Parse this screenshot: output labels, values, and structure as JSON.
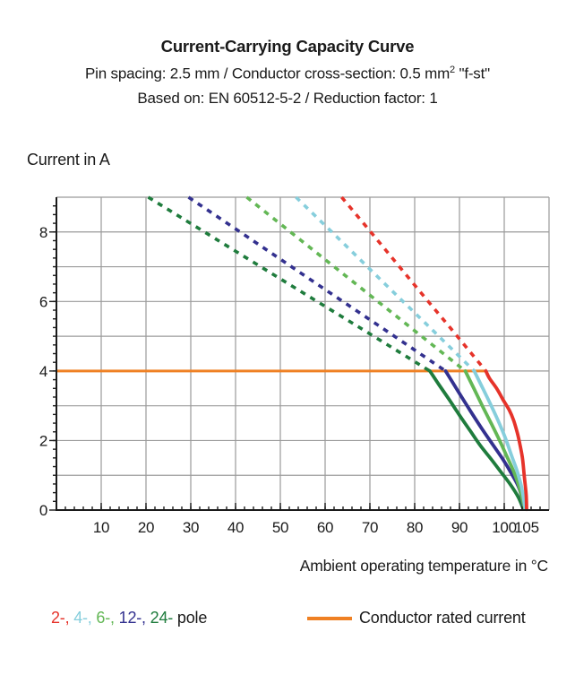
{
  "title": {
    "main": "Current-Carrying Capacity Curve",
    "subtitle_pre": "Pin spacing: 2.5 mm / Conductor cross-section: 0.5 mm",
    "subtitle_sup": "2",
    "subtitle_post": " \"f-st\"",
    "basis": "Based on: EN 60512-5-2 / Reduction factor: 1"
  },
  "axes_titles": {
    "y": "Current in A",
    "x": "Ambient operating temperature in °C"
  },
  "legend": {
    "pole_items": [
      {
        "label": "2-,",
        "color": "#E6332A"
      },
      {
        "label": "4-,",
        "color": "#86CEDC"
      },
      {
        "label": "6-,",
        "color": "#63B755"
      },
      {
        "label": "12-,",
        "color": "#33318F"
      },
      {
        "label": "24-",
        "color": "#1F7C3D"
      }
    ],
    "pole_suffix": " pole",
    "rated_label": "Conductor rated current",
    "rated_color": "#EF8023"
  },
  "chart_data": {
    "type": "line",
    "title": "Current-Carrying Capacity Curve",
    "subtitle": "Pin spacing: 2.5 mm / Conductor cross-section: 0.5 mm2 \"f-st\" / Based on: EN 60512-5-2 / Reduction factor: 1",
    "xlabel": "Ambient operating temperature in °C",
    "ylabel": "Current in A",
    "xlim": [
      0,
      110
    ],
    "ylim": [
      0,
      9
    ],
    "grid_color": "#9A9A9A",
    "axis_color": "#1a1a1a",
    "x_gridlines": [
      10,
      20,
      30,
      40,
      50,
      60,
      70,
      80,
      90,
      100,
      110
    ],
    "y_gridlines": [
      1,
      2,
      3,
      4,
      5,
      6,
      7,
      8,
      9
    ],
    "x_ticks": [
      {
        "from": 2,
        "to": 108,
        "step": 2,
        "len": 4
      },
      {
        "from": 10,
        "to": 100,
        "step": 10,
        "len": 8
      }
    ],
    "y_ticks": [
      {
        "from": 0.25,
        "to": 8.75,
        "step": 0.25,
        "len": 4
      },
      {
        "from": 0,
        "to": 8,
        "step": 2,
        "len": 8
      }
    ],
    "x_tick_labels": [
      {
        "v": 10,
        "label": "10"
      },
      {
        "v": 20,
        "label": "20"
      },
      {
        "v": 30,
        "label": "30"
      },
      {
        "v": 40,
        "label": "40"
      },
      {
        "v": 50,
        "label": "50"
      },
      {
        "v": 60,
        "label": "60"
      },
      {
        "v": 70,
        "label": "70"
      },
      {
        "v": 80,
        "label": "80"
      },
      {
        "v": 90,
        "label": "90"
      },
      {
        "v": 100,
        "label": "100"
      },
      {
        "v": 105,
        "label": "105"
      }
    ],
    "y_tick_labels": [
      {
        "v": 0,
        "label": "0"
      },
      {
        "v": 2,
        "label": "2"
      },
      {
        "v": 4,
        "label": "4"
      },
      {
        "v": 6,
        "label": "6"
      },
      {
        "v": 8,
        "label": "8"
      }
    ],
    "rated_current": {
      "label": "Conductor rated current",
      "color": "#EF8023",
      "y": 4,
      "x_from": 0,
      "x_to": 95.9
    },
    "series": [
      {
        "name": "24-pole",
        "color": "#1F7C3D",
        "dashed": [
          [
            20.5,
            9
          ],
          [
            36.2,
            7.75
          ],
          [
            51.9,
            6.5
          ],
          [
            67.7,
            5.25
          ],
          [
            83.4,
            4
          ]
        ],
        "solid": [
          [
            83.4,
            4
          ],
          [
            85.4,
            3.61
          ],
          [
            87.7,
            3.18
          ],
          [
            90.1,
            2.71
          ],
          [
            92.4,
            2.28
          ],
          [
            94.7,
            1.85
          ],
          [
            97.1,
            1.46
          ],
          [
            99.4,
            1.07
          ],
          [
            101.4,
            0.73
          ],
          [
            103.1,
            0.38
          ],
          [
            104.25,
            0.03
          ]
        ]
      },
      {
        "name": "12-pole",
        "color": "#33318F",
        "dashed": [
          [
            29.5,
            9
          ],
          [
            43.9,
            7.75
          ],
          [
            58.2,
            6.5
          ],
          [
            72.6,
            5.25
          ],
          [
            86.9,
            4
          ]
        ],
        "solid": [
          [
            86.9,
            4
          ],
          [
            89.4,
            3.48
          ],
          [
            92.1,
            2.92
          ],
          [
            94.7,
            2.4
          ],
          [
            97.4,
            1.89
          ],
          [
            99.7,
            1.46
          ],
          [
            101.7,
            1.03
          ],
          [
            103.4,
            0.6
          ],
          [
            104.4,
            0.03
          ]
        ]
      },
      {
        "name": "6-pole",
        "color": "#63B755",
        "dashed": [
          [
            42.5,
            9
          ],
          [
            54.7,
            7.75
          ],
          [
            66.9,
            6.5
          ],
          [
            79.1,
            5.25
          ],
          [
            91.3,
            4
          ]
        ],
        "solid": [
          [
            91.3,
            4
          ],
          [
            93.1,
            3.53
          ],
          [
            95.1,
            3.0
          ],
          [
            97.1,
            2.49
          ],
          [
            98.9,
            2.02
          ],
          [
            100.6,
            1.54
          ],
          [
            102.1,
            1.11
          ],
          [
            103.4,
            0.64
          ],
          [
            104.55,
            0.03
          ]
        ]
      },
      {
        "name": "4-pole",
        "color": "#86CEDC",
        "dashed": [
          [
            53.5,
            9
          ],
          [
            63.5,
            7.75
          ],
          [
            73.4,
            6.5
          ],
          [
            83.4,
            5.25
          ],
          [
            93.3,
            4
          ]
        ],
        "solid": [
          [
            93.3,
            4
          ],
          [
            95.1,
            3.53
          ],
          [
            97.1,
            3.0
          ],
          [
            98.9,
            2.49
          ],
          [
            100.4,
            2.02
          ],
          [
            101.7,
            1.54
          ],
          [
            102.9,
            1.11
          ],
          [
            103.9,
            0.64
          ],
          [
            104.7,
            0.03
          ]
        ]
      },
      {
        "name": "2-pole",
        "color": "#E6332A",
        "dashed": [
          [
            63.7,
            9
          ],
          [
            71.8,
            7.75
          ],
          [
            79.8,
            6.5
          ],
          [
            87.9,
            5.25
          ],
          [
            95.9,
            4
          ]
        ],
        "solid": [
          [
            95.9,
            4
          ],
          [
            96.7,
            3.79
          ],
          [
            98.4,
            3.48
          ],
          [
            99.7,
            3.18
          ],
          [
            101.1,
            2.88
          ],
          [
            102.1,
            2.58
          ],
          [
            102.9,
            2.23
          ],
          [
            103.5,
            1.89
          ],
          [
            104.1,
            1.46
          ],
          [
            104.5,
            0.94
          ],
          [
            104.9,
            0.43
          ],
          [
            105.0,
            0.02
          ]
        ]
      }
    ],
    "legend_position": "bottom",
    "grid": true
  }
}
